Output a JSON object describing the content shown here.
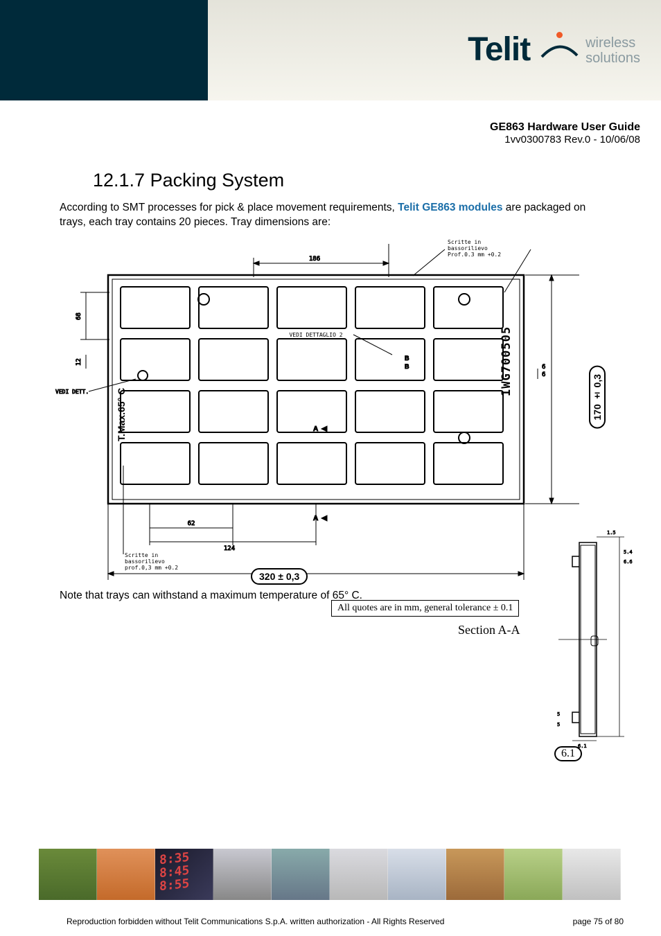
{
  "header": {
    "brand_name": "Telit",
    "brand_tag_line1": "wireless",
    "brand_tag_line2": "solutions",
    "dark_bg": "#002a3a",
    "light_gradient_top": "#e4e3da",
    "light_gradient_bottom": "#f6f5ee",
    "accent": "#f05a28"
  },
  "doc": {
    "title": "GE863 Hardware User Guide",
    "revision": "1vv0300783 Rev.0 - 10/06/08"
  },
  "section": {
    "number_title": "12.1.7 Packing System",
    "intro_pre": "According to SMT processes for pick & place movement requirements, ",
    "intro_hl": "Telit GE863 modules",
    "intro_post": " are packaged on trays, each tray contains 20 pieces. Tray dimensions are:",
    "highlight_color": "#1b6ea8"
  },
  "tray_diagram": {
    "outer_width_mm": 320,
    "outer_height_mm": 170,
    "cols": 5,
    "rows": 4,
    "pocket_gap": 6,
    "dim_width_label": "320 ± 0,3",
    "dim_height_label": "170 ± 0,3",
    "top_dim": "186",
    "bottom_dim_1": "62",
    "bottom_dim_2": "124",
    "left_dim_1": "68",
    "left_dim_2": "12",
    "right_dim_1": "6",
    "right_dim_2": "6",
    "part_no": "1WG700505",
    "center_label": "VEDI DETTAGLIO 2",
    "tmax_label": "T.Max.65° C",
    "vedi_dett": "VEDI DETT.",
    "scritte_note_l1": "Scritte in",
    "scritte_note_l2": "bassorilievo",
    "scritte_note_l3": "prof.0,3 mm +0.2",
    "markers_b": "B",
    "tolerance_note": "All quotes are in mm, general tolerance ± 0.1",
    "stroke": "#000000",
    "bg": "#ffffff"
  },
  "temp_note": "Note that trays can withstand a maximum temperature of 65° C.",
  "section_view": {
    "label": "Section A-A",
    "height_mm": 170,
    "thickness_mm": 6.1,
    "thickness_label": "6.1",
    "dims_small": [
      "1.5",
      "6.6",
      "5.4",
      "0.5",
      "5",
      "5",
      "6.1"
    ]
  },
  "footer": {
    "copy": "Reproduction forbidden without Telit Communications S.p.A. written authorization - All Rights Reserved",
    "page": "page 75 of 80",
    "strip_colors": [
      "linear-gradient(180deg,#6a8a3a,#4a6a2a)",
      "linear-gradient(180deg,#e0915a,#c46a2a)",
      "linear-gradient(135deg,#1a1a2a,#3a3a5a)",
      "linear-gradient(180deg,#c8c8d0,#888)",
      "linear-gradient(180deg,#8aa,#678)",
      "linear-gradient(180deg,#dadadf,#b8b8b8)",
      "linear-gradient(180deg,#d8dee8,#a8b4c4)",
      "linear-gradient(180deg,#c8985a,#9c6a3a)",
      "linear-gradient(180deg,#b8d088,#8aa858)",
      "linear-gradient(180deg,#e8e8e8,#c0c0c0)"
    ]
  }
}
